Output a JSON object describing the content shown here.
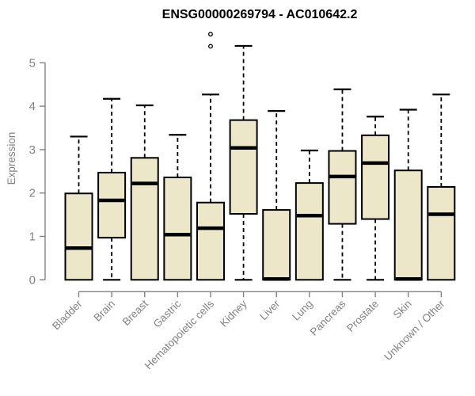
{
  "title": "ENSG00000269794 - AC010642.2",
  "ylabel": "Expression",
  "colors": {
    "background": "#FFFFFF",
    "box_fill": "#EDE7CA",
    "box_border": "#000000",
    "median": "#000000",
    "whisker": "#000000",
    "outlier": "#000000",
    "axis": "#828282",
    "tick_label": "#828282",
    "category_label": "#828282",
    "title": "#000000"
  },
  "chart_data": {
    "type": "boxplot",
    "title": "ENSG00000269794 - AC010642.2",
    "xlabel": "",
    "ylabel": "Expression",
    "ylim": [
      0,
      5
    ],
    "yticks": [
      0,
      1,
      2,
      3,
      4,
      5
    ],
    "grid": false,
    "legend": false,
    "categories": [
      "Bladder",
      "Brain",
      "Breast",
      "Gastric",
      "Hematopoietic cells",
      "Kidney",
      "Liver",
      "Lung",
      "Pancreas",
      "Prostate",
      "Skin",
      "Unknown / Other"
    ],
    "boxes": [
      {
        "category": "Bladder",
        "whisker_low": 0,
        "q1": 0,
        "median": 0.73,
        "q3": 1.99,
        "whisker_high": 3.3,
        "outliers": []
      },
      {
        "category": "Brain",
        "whisker_low": 0,
        "q1": 0.97,
        "median": 1.83,
        "q3": 2.47,
        "whisker_high": 4.17,
        "outliers": []
      },
      {
        "category": "Breast",
        "whisker_low": 0,
        "q1": 0,
        "median": 2.22,
        "q3": 2.81,
        "whisker_high": 4.02,
        "outliers": []
      },
      {
        "category": "Gastric",
        "whisker_low": 0,
        "q1": 0,
        "median": 1.04,
        "q3": 2.36,
        "whisker_high": 3.34,
        "outliers": []
      },
      {
        "category": "Hematopoietic cells",
        "whisker_low": 0,
        "q1": 0,
        "median": 1.19,
        "q3": 1.78,
        "whisker_high": 4.27,
        "outliers": [
          5.38,
          5.66
        ]
      },
      {
        "category": "Kidney",
        "whisker_low": 0,
        "q1": 1.52,
        "median": 3.04,
        "q3": 3.68,
        "whisker_high": 5.39,
        "outliers": []
      },
      {
        "category": "Liver",
        "whisker_low": 0,
        "q1": 0,
        "median": 0.02,
        "q3": 1.61,
        "whisker_high": 3.89,
        "outliers": []
      },
      {
        "category": "Lung",
        "whisker_low": 0,
        "q1": 0,
        "median": 1.48,
        "q3": 2.23,
        "whisker_high": 2.98,
        "outliers": []
      },
      {
        "category": "Pancreas",
        "whisker_low": 0,
        "q1": 1.29,
        "median": 2.38,
        "q3": 2.97,
        "whisker_high": 4.39,
        "outliers": []
      },
      {
        "category": "Prostate",
        "whisker_low": 0,
        "q1": 1.4,
        "median": 2.69,
        "q3": 3.33,
        "whisker_high": 3.76,
        "outliers": []
      },
      {
        "category": "Skin",
        "whisker_low": 0,
        "q1": 0,
        "median": 0.02,
        "q3": 2.52,
        "whisker_high": 3.92,
        "outliers": []
      },
      {
        "category": "Unknown / Other",
        "whisker_low": 0,
        "q1": 0,
        "median": 1.51,
        "q3": 2.14,
        "whisker_high": 4.27,
        "outliers": []
      }
    ]
  }
}
